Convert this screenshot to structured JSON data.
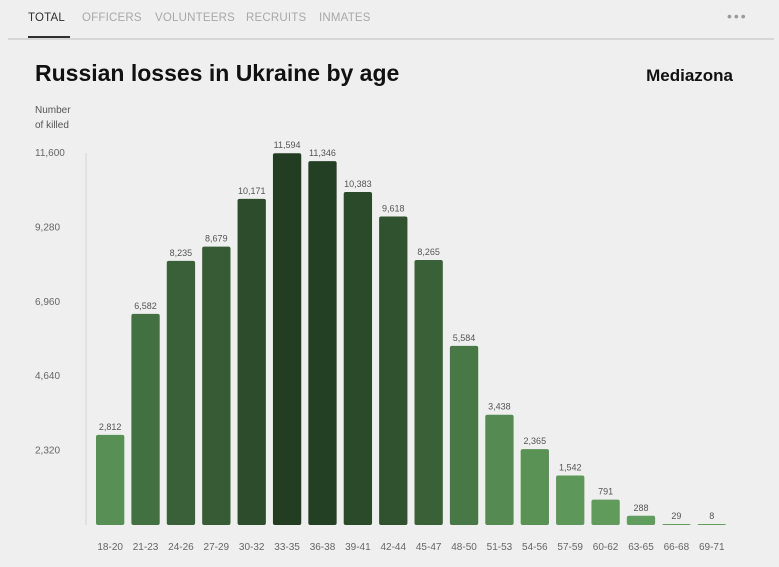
{
  "tabs": [
    {
      "label": "TOTAL",
      "active": true
    },
    {
      "label": "OFFICERS",
      "active": false
    },
    {
      "label": "VOLUNTEERS",
      "active": false
    },
    {
      "label": "RECRUITS",
      "active": false
    },
    {
      "label": "INMATES",
      "active": false
    }
  ],
  "menu_icon": "more-horizontal-icon",
  "brand": "Mediazona",
  "chart_data": {
    "type": "bar",
    "title": "Russian losses in Ukraine by age",
    "ylabel": "Number\nof killed",
    "xlabel": "",
    "ylim": [
      0,
      11600
    ],
    "yticks": [
      "11,600",
      "9,280",
      "6,960",
      "4,640",
      "2,320"
    ],
    "ytick_values": [
      11600,
      9280,
      6960,
      4640,
      2320
    ],
    "categories": [
      "18-20",
      "21-23",
      "24-26",
      "27-29",
      "30-32",
      "33-35",
      "36-38",
      "39-41",
      "42-44",
      "45-47",
      "48-50",
      "51-53",
      "54-56",
      "57-59",
      "60-62",
      "63-65",
      "66-68",
      "69-71"
    ],
    "values": [
      2812,
      6582,
      8235,
      8679,
      10171,
      11594,
      11346,
      10383,
      9618,
      8265,
      5584,
      3438,
      2365,
      1542,
      791,
      288,
      29,
      8
    ],
    "value_labels": [
      "2,812",
      "6,582",
      "8,235",
      "8,679",
      "10,171",
      "11,594",
      "11,346",
      "10,383",
      "9,618",
      "8,265",
      "5,584",
      "3,438",
      "2,365",
      "1,542",
      "791",
      "288",
      "29",
      "8"
    ],
    "grid": false,
    "colors": {
      "light": "#629e5e",
      "dark": "#223d22"
    }
  }
}
